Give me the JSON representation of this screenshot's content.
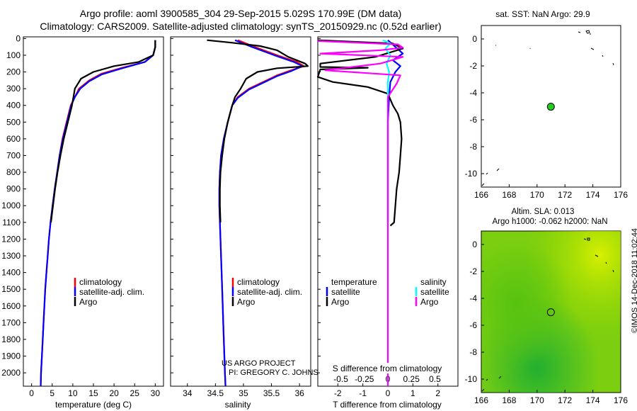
{
  "header": {
    "title_line1": "Argo profile: aoml 3900585_304 29-Sep-2015 5.029S 170.99E (DM data)",
    "title_line2": "Climatology: CARS2009. Satellite-adjusted climatology: synTS_20150929.nc (0.52d earlier)"
  },
  "colors": {
    "climatology": "#ff0000",
    "satellite": "#0000ff",
    "argo": "#000000",
    "salinity_sat": "#00ffff",
    "salinity_argo": "#ff00ff",
    "float_marker": "#22cc22"
  },
  "footer": {
    "stamp": "©IMOS 14-Dec-2018 11:02:44"
  },
  "chart_data": [
    {
      "id": "temperature",
      "type": "line",
      "title": "",
      "xlabel": "temperature (deg C)",
      "xlim": [
        -2,
        32
      ],
      "ylim": [
        2080,
        -10
      ],
      "xticks": [
        "0",
        "5",
        "10",
        "15",
        "20",
        "25",
        "30"
      ],
      "xtick_values": [
        0,
        5,
        10,
        15,
        20,
        25,
        30
      ],
      "yticks": [
        "0",
        "100",
        "200",
        "300",
        "400",
        "500",
        "600",
        "700",
        "800",
        "900",
        "1000",
        "1100",
        "1200",
        "1300",
        "1400",
        "1500",
        "1600",
        "1700",
        "1800",
        "1900",
        "2000"
      ],
      "ytick_values": [
        0,
        100,
        200,
        300,
        400,
        500,
        600,
        700,
        800,
        900,
        1000,
        1100,
        1200,
        1300,
        1400,
        1500,
        1600,
        1700,
        1800,
        1900,
        2000
      ],
      "legend": [
        "climatology",
        "satellite-adj. clim.",
        "Argo"
      ],
      "series": [
        {
          "name": "climatology",
          "color": "#ff0000",
          "points": [
            [
              30,
              10
            ],
            [
              30,
              50
            ],
            [
              29.5,
              100
            ],
            [
              27.5,
              140
            ],
            [
              22,
              175
            ],
            [
              17,
              210
            ],
            [
              14,
              250
            ],
            [
              11.5,
              300
            ],
            [
              10.5,
              350
            ],
            [
              9.5,
              400
            ],
            [
              8.5,
              500
            ],
            [
              7.5,
              600
            ],
            [
              6.8,
              700
            ],
            [
              6.2,
              800
            ],
            [
              5.6,
              900
            ],
            [
              5.1,
              1000
            ],
            [
              4.6,
              1100
            ],
            [
              4.2,
              1200
            ],
            [
              3.9,
              1300
            ],
            [
              3.6,
              1400
            ],
            [
              3.3,
              1500
            ],
            [
              3.1,
              1600
            ],
            [
              2.9,
              1700
            ],
            [
              2.7,
              1800
            ],
            [
              2.5,
              1900
            ],
            [
              2.3,
              2000
            ],
            [
              2.2,
              2080
            ]
          ]
        },
        {
          "name": "satellite-adj. clim.",
          "color": "#0000ff",
          "points": [
            [
              30,
              10
            ],
            [
              30,
              50
            ],
            [
              29.5,
              100
            ],
            [
              27.5,
              140
            ],
            [
              22,
              178
            ],
            [
              17,
              215
            ],
            [
              14,
              255
            ],
            [
              11.8,
              300
            ],
            [
              10.5,
              350
            ],
            [
              9.6,
              400
            ],
            [
              8.6,
              500
            ],
            [
              7.6,
              600
            ],
            [
              6.8,
              700
            ],
            [
              6.2,
              800
            ],
            [
              5.6,
              900
            ],
            [
              5.1,
              1000
            ],
            [
              4.6,
              1100
            ],
            [
              4.2,
              1200
            ],
            [
              3.9,
              1300
            ],
            [
              3.6,
              1400
            ],
            [
              3.3,
              1500
            ],
            [
              3.1,
              1600
            ],
            [
              2.9,
              1700
            ],
            [
              2.7,
              1800
            ],
            [
              2.5,
              1900
            ],
            [
              2.3,
              2000
            ],
            [
              2.2,
              2080
            ]
          ]
        },
        {
          "name": "Argo",
          "color": "#000000",
          "points": [
            [
              30,
              10
            ],
            [
              30,
              50
            ],
            [
              29.5,
              100
            ],
            [
              26,
              140
            ],
            [
              20,
              165
            ],
            [
              15,
              200
            ],
            [
              12,
              240
            ],
            [
              10.5,
              300
            ],
            [
              9.8,
              400
            ],
            [
              8.8,
              500
            ],
            [
              7.8,
              600
            ],
            [
              7,
              700
            ],
            [
              6.3,
              800
            ],
            [
              5.7,
              900
            ],
            [
              5.2,
              1000
            ],
            [
              4.7,
              1100
            ]
          ]
        }
      ]
    },
    {
      "id": "salinity",
      "type": "line",
      "xlabel": "salinity",
      "xlim": [
        33.7,
        36.2
      ],
      "ylim": [
        2080,
        -10
      ],
      "xticks": [
        "34",
        "34.5",
        "35",
        "35.5",
        "36"
      ],
      "xtick_values": [
        34,
        34.5,
        35,
        35.5,
        36
      ],
      "legend": [
        "climatology",
        "satellite-adj. clim.",
        "Argo"
      ],
      "annotations": [
        "US ARGO PROJECT",
        "PI: GREGORY C. JOHNSON"
      ],
      "series": [
        {
          "name": "climatology",
          "color": "#ff0000",
          "points": [
            [
              34.9,
              10
            ],
            [
              35.2,
              50
            ],
            [
              35.6,
              100
            ],
            [
              35.95,
              140
            ],
            [
              36.08,
              165
            ],
            [
              35.85,
              190
            ],
            [
              35.6,
              220
            ],
            [
              35.35,
              260
            ],
            [
              35.1,
              300
            ],
            [
              34.9,
              350
            ],
            [
              34.8,
              400
            ],
            [
              34.72,
              500
            ],
            [
              34.65,
              600
            ],
            [
              34.6,
              700
            ],
            [
              34.58,
              800
            ],
            [
              34.57,
              900
            ],
            [
              34.57,
              1000
            ],
            [
              34.58,
              1100
            ],
            [
              34.59,
              1200
            ],
            [
              34.6,
              1300
            ],
            [
              34.61,
              1400
            ],
            [
              34.62,
              1500
            ],
            [
              34.63,
              1600
            ],
            [
              34.64,
              1700
            ],
            [
              34.65,
              1800
            ],
            [
              34.66,
              1900
            ],
            [
              34.67,
              2000
            ],
            [
              34.68,
              2080
            ]
          ]
        },
        {
          "name": "satellite-adj. clim.",
          "color": "#0000ff",
          "points": [
            [
              34.85,
              10
            ],
            [
              35.15,
              50
            ],
            [
              35.55,
              100
            ],
            [
              35.9,
              140
            ],
            [
              36.05,
              165
            ],
            [
              35.85,
              195
            ],
            [
              35.6,
              225
            ],
            [
              35.35,
              265
            ],
            [
              35.1,
              305
            ],
            [
              34.9,
              355
            ],
            [
              34.8,
              400
            ],
            [
              34.72,
              500
            ],
            [
              34.65,
              600
            ],
            [
              34.6,
              700
            ],
            [
              34.58,
              800
            ],
            [
              34.57,
              900
            ],
            [
              34.57,
              1000
            ],
            [
              34.58,
              1100
            ],
            [
              34.59,
              1200
            ],
            [
              34.6,
              1300
            ],
            [
              34.61,
              1400
            ],
            [
              34.62,
              1500
            ],
            [
              34.63,
              1600
            ],
            [
              34.64,
              1700
            ],
            [
              34.65,
              1800
            ],
            [
              34.66,
              1900
            ],
            [
              34.67,
              2000
            ],
            [
              34.68,
              2080
            ]
          ]
        },
        {
          "name": "Argo",
          "color": "#000000",
          "points": [
            [
              34.35,
              10
            ],
            [
              34.8,
              25
            ],
            [
              35.3,
              45
            ],
            [
              35.6,
              70
            ],
            [
              35.8,
              110
            ],
            [
              36.1,
              150
            ],
            [
              36.15,
              165
            ],
            [
              35.6,
              178
            ],
            [
              35.25,
              200
            ],
            [
              35.05,
              240
            ],
            [
              34.95,
              300
            ],
            [
              34.85,
              350
            ],
            [
              34.8,
              400
            ],
            [
              34.72,
              500
            ],
            [
              34.66,
              600
            ],
            [
              34.62,
              700
            ],
            [
              34.59,
              800
            ],
            [
              34.58,
              900
            ],
            [
              34.58,
              1000
            ],
            [
              34.59,
              1100
            ]
          ]
        }
      ]
    },
    {
      "id": "difference",
      "type": "line",
      "xlabel": "T difference from climatology",
      "xlabel_top": "S difference from climatology",
      "xlim": [
        -2.8,
        2.8
      ],
      "ylim": [
        2080,
        -10
      ],
      "xticks": [
        "-2",
        "-1",
        "0",
        "1",
        "2"
      ],
      "xtick_values": [
        -2,
        -1,
        0,
        1,
        2
      ],
      "sticks": [
        "-0.5",
        "-0.25",
        "0",
        "0.25",
        "0.5"
      ],
      "stick_values": [
        -0.5,
        -0.25,
        0,
        0.25,
        0.5
      ],
      "legend_left_title": "temperature",
      "legend_right_title": "salinity",
      "legend_left": [
        "satellite",
        "Argo"
      ],
      "legend_right": [
        "satellite",
        "Argo"
      ],
      "series": [
        {
          "name": "T satellite",
          "color": "#0000ff",
          "points": [
            [
              0,
              10
            ],
            [
              0.3,
              50
            ],
            [
              0.6,
              90
            ],
            [
              0.2,
              130
            ],
            [
              0.5,
              165
            ],
            [
              0.3,
              200
            ],
            [
              0.1,
              260
            ],
            [
              0.05,
              350
            ],
            [
              0,
              500
            ],
            [
              0,
              1100
            ]
          ]
        },
        {
          "name": "T Argo",
          "color": "#000000",
          "points": [
            [
              -2.8,
              10
            ],
            [
              0.2,
              30
            ],
            [
              0.6,
              60
            ],
            [
              -0.5,
              110
            ],
            [
              -2.7,
              150
            ],
            [
              -2.7,
              170
            ],
            [
              -0.8,
              175
            ],
            [
              -2.7,
              185
            ],
            [
              -2.8,
              230
            ],
            [
              -2.2,
              260
            ],
            [
              -0.8,
              290
            ],
            [
              0,
              330
            ],
            [
              0.2,
              400
            ],
            [
              0.4,
              450
            ],
            [
              0.5,
              500
            ],
            [
              0.55,
              600
            ],
            [
              0.5,
              700
            ],
            [
              0.45,
              800
            ],
            [
              0.35,
              900
            ],
            [
              0.3,
              1000
            ],
            [
              0.25,
              1100
            ],
            [
              0.1,
              1120
            ]
          ]
        },
        {
          "name": "S satellite",
          "color": "#00ffff",
          "points": [
            [
              -0.2,
              10
            ],
            [
              0.1,
              30
            ],
            [
              -0.1,
              60
            ],
            [
              0.1,
              100
            ],
            [
              -0.05,
              150
            ],
            [
              0.05,
              200
            ],
            [
              0,
              260
            ],
            [
              0,
              600
            ],
            [
              0,
              1200
            ],
            [
              0,
              2080
            ]
          ]
        },
        {
          "name": "S Argo",
          "color": "#ff00ff",
          "points": [
            [
              -2.8,
              15
            ],
            [
              0.4,
              35
            ],
            [
              0.6,
              55
            ],
            [
              -0.3,
              70
            ],
            [
              -2.7,
              90
            ],
            [
              0.6,
              110
            ],
            [
              -0.3,
              150
            ],
            [
              -2.5,
              190
            ],
            [
              0.5,
              220
            ],
            [
              0.35,
              270
            ],
            [
              0,
              350
            ],
            [
              0,
              2080
            ]
          ]
        }
      ]
    },
    {
      "id": "sst-map",
      "type": "scatter",
      "title": "sat. SST: NaN Argo: 29.9",
      "xlim": [
        166,
        176
      ],
      "ylim": [
        -11,
        1
      ],
      "xticks": [
        "166",
        "168",
        "170",
        "172",
        "174",
        "176"
      ],
      "xtick_values": [
        166,
        168,
        170,
        172,
        174,
        176
      ],
      "yticks": [
        "0",
        "-2",
        "-4",
        "-6",
        "-8",
        "-10"
      ],
      "ytick_values": [
        0,
        -2,
        -4,
        -6,
        -8,
        -10
      ],
      "float_position": [
        170.99,
        -5.029
      ]
    },
    {
      "id": "sla-map",
      "type": "heatmap",
      "title_line1": "Altim. SLA: 0.013",
      "title_line2": "Argo h1000: -0.062 h2000: NaN",
      "xlim": [
        166,
        176
      ],
      "ylim": [
        -11,
        1
      ],
      "xticks": [
        "166",
        "168",
        "170",
        "172",
        "174",
        "176"
      ],
      "xtick_values": [
        166,
        168,
        170,
        172,
        174,
        176
      ],
      "yticks": [
        "0",
        "-2",
        "-4",
        "-6",
        "-8",
        "-10"
      ],
      "ytick_values": [
        0,
        -2,
        -4,
        -6,
        -8,
        -10
      ],
      "float_position": [
        170.99,
        -5.029
      ]
    }
  ]
}
